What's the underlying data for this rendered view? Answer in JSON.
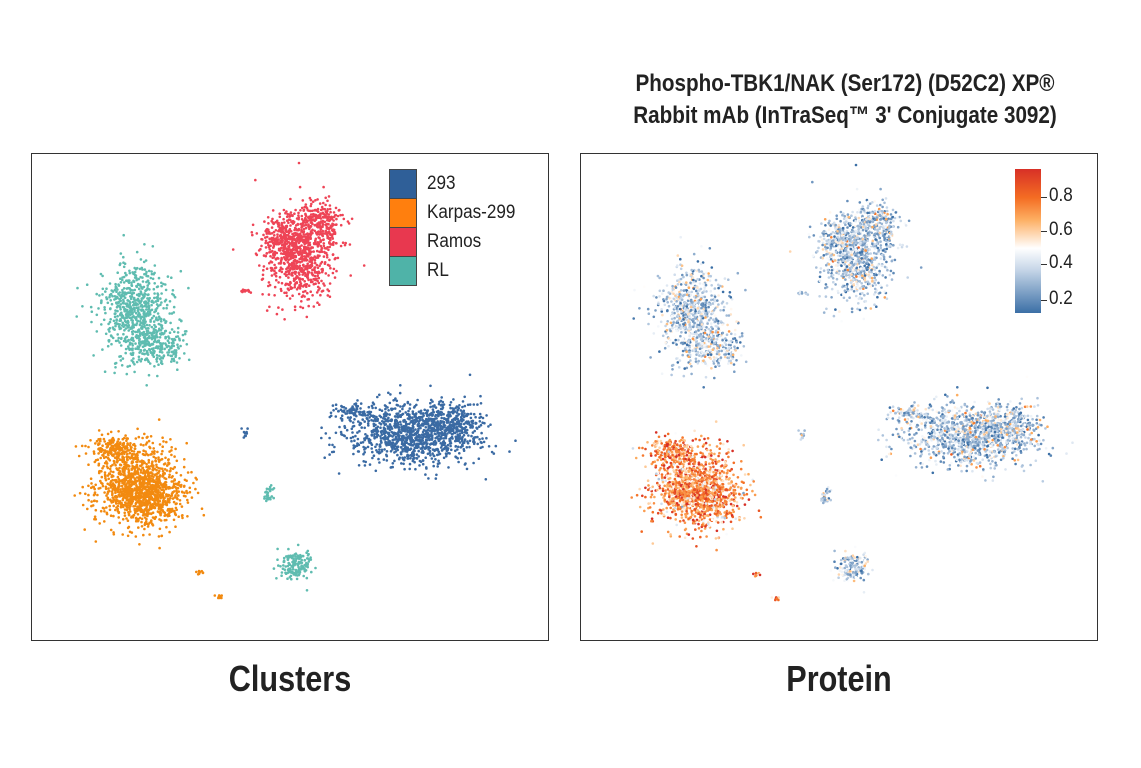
{
  "chart_data": [
    {
      "type": "scatter",
      "title": "",
      "caption": "Clusters",
      "legend": {
        "placement": "top-right",
        "entries": [
          {
            "name": "293",
            "color": "#2f5f98"
          },
          {
            "name": "Karpas-299",
            "color": "#ff7f0e"
          },
          {
            "name": "Ramos",
            "color": "#e8384f"
          },
          {
            "name": "RL",
            "color": "#4fb3a8"
          }
        ]
      },
      "series": [
        {
          "name": "293",
          "color": "#3a6aa3"
        },
        {
          "name": "Karpas-299",
          "color": "#f28a10"
        },
        {
          "name": "Ramos",
          "color": "#ee4456"
        },
        {
          "name": "RL",
          "color": "#5fbcb0"
        }
      ],
      "grid": false
    },
    {
      "type": "scatter",
      "title_lines": [
        "Phospho-TBK1/NAK (Ser172) (D52C2) XP®",
        "Rabbit mAb (InTraSeq™ 3' Conjugate 3092)"
      ],
      "caption": "Protein",
      "colorbar": {
        "placement": "top-right",
        "ticks": [
          "0.8",
          "0.6",
          "0.4",
          "0.2"
        ],
        "range": [
          0.1,
          1.0
        ]
      },
      "grid": false
    }
  ]
}
